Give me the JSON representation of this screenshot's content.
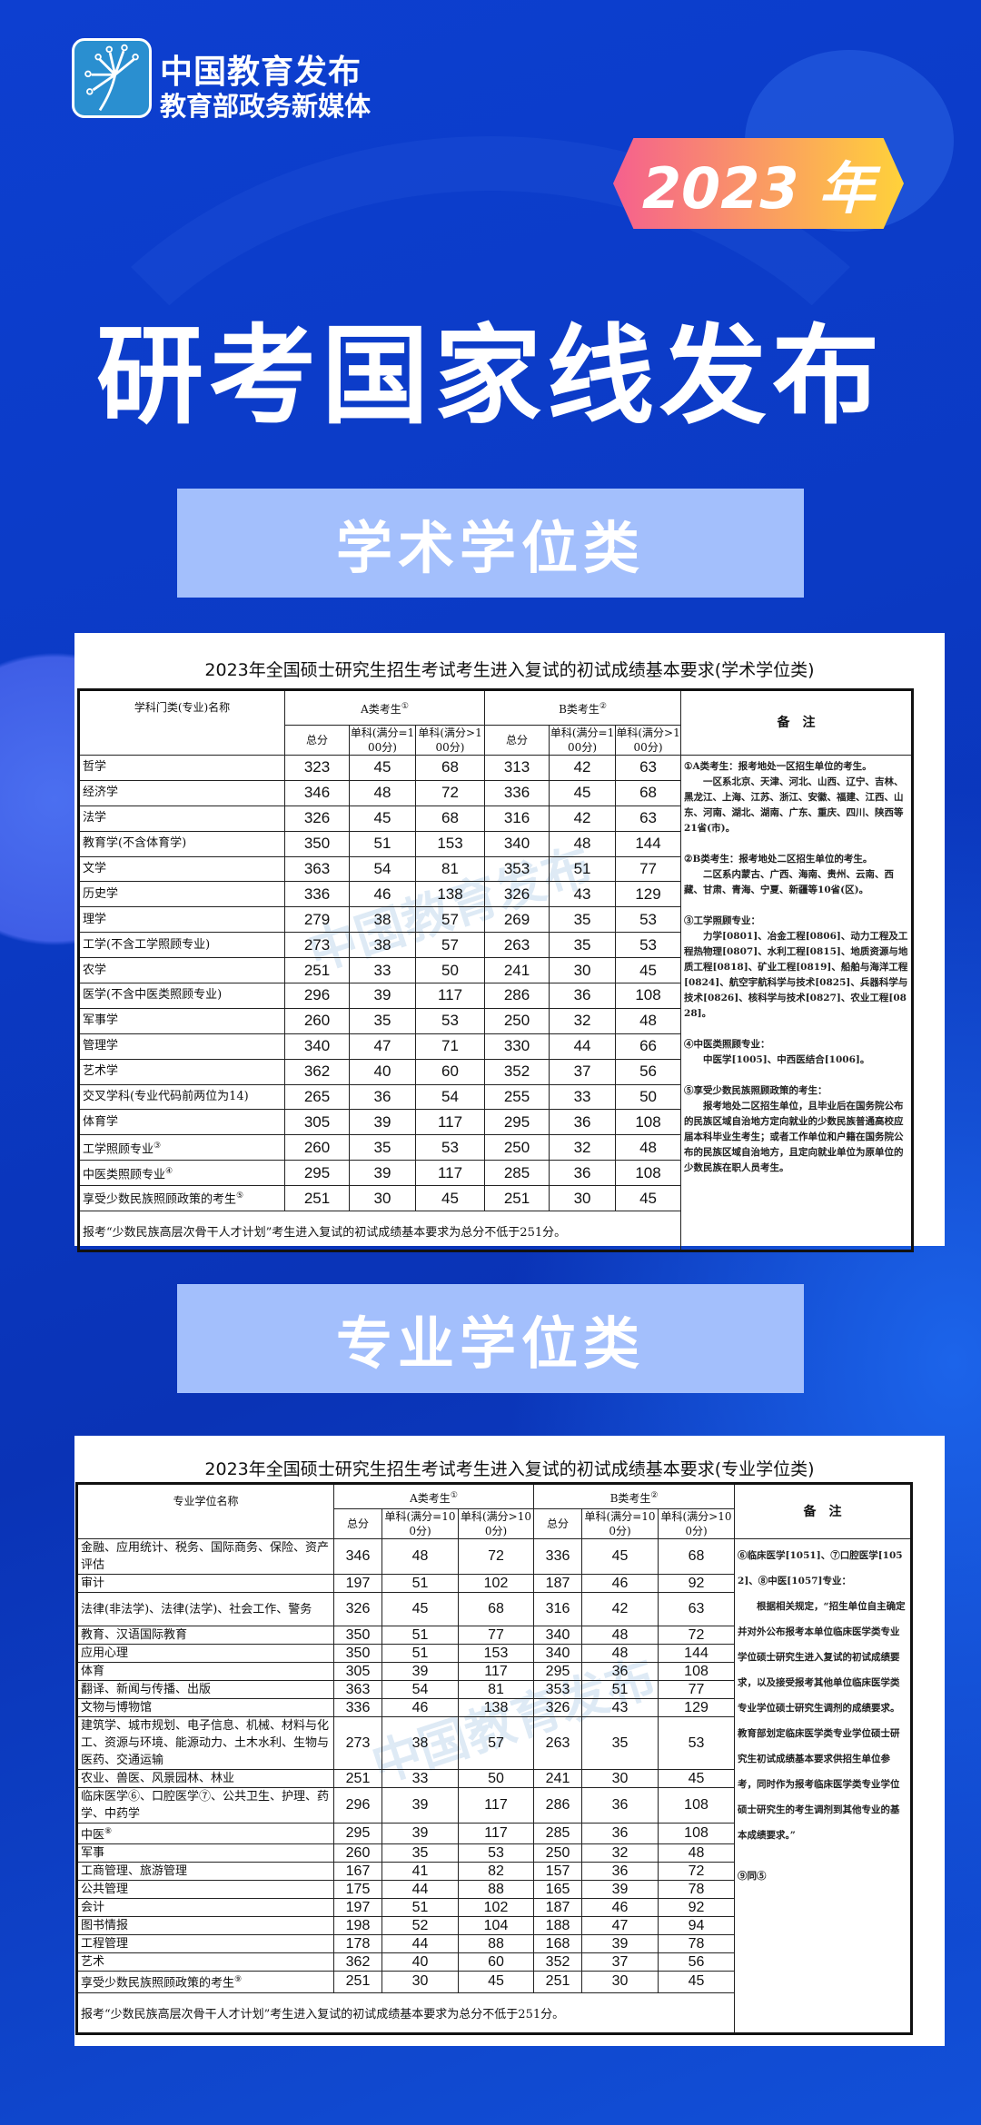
{
  "brand": {
    "name": "中国教育发布",
    "subtitle": "教育部政务新媒体",
    "icon": "dandelion-logo-icon"
  },
  "badge": "2023 年",
  "title": "研考国家线发布",
  "colors": {
    "background": "#0b3ac4",
    "banner": "#a3bffc",
    "badge_start": "#f5608e",
    "badge_end": "#ffd23a"
  },
  "academic": {
    "banner": "学术学位类",
    "table_title": "2023年全国硕士研究生招生考试考生进入复试的初试成绩基本要求(学术学位类)",
    "headers": {
      "name": "学科门类(专业)名称",
      "a_group": "A类考生",
      "a_sup": "①",
      "b_group": "B类考生",
      "b_sup": "②",
      "total": "总分",
      "single100": "单科(满分=100分)",
      "single_gt100": "单科(满分>100分)",
      "notes": "备　注"
    },
    "rows": [
      {
        "name": "哲学",
        "sup": "",
        "v": [
          "323",
          "45",
          "68",
          "313",
          "42",
          "63"
        ]
      },
      {
        "name": "经济学",
        "sup": "",
        "v": [
          "346",
          "48",
          "72",
          "336",
          "45",
          "68"
        ]
      },
      {
        "name": "法学",
        "sup": "",
        "v": [
          "326",
          "45",
          "68",
          "316",
          "42",
          "63"
        ]
      },
      {
        "name": "教育学(不含体育学)",
        "sup": "",
        "v": [
          "350",
          "51",
          "153",
          "340",
          "48",
          "144"
        ]
      },
      {
        "name": "文学",
        "sup": "",
        "v": [
          "363",
          "54",
          "81",
          "353",
          "51",
          "77"
        ]
      },
      {
        "name": "历史学",
        "sup": "",
        "v": [
          "336",
          "46",
          "138",
          "326",
          "43",
          "129"
        ]
      },
      {
        "name": "理学",
        "sup": "",
        "v": [
          "279",
          "38",
          "57",
          "269",
          "35",
          "53"
        ]
      },
      {
        "name": "工学(不含工学照顾专业)",
        "sup": "",
        "v": [
          "273",
          "38",
          "57",
          "263",
          "35",
          "53"
        ]
      },
      {
        "name": "农学",
        "sup": "",
        "v": [
          "251",
          "33",
          "50",
          "241",
          "30",
          "45"
        ]
      },
      {
        "name": "医学(不含中医类照顾专业)",
        "sup": "",
        "v": [
          "296",
          "39",
          "117",
          "286",
          "36",
          "108"
        ]
      },
      {
        "name": "军事学",
        "sup": "",
        "v": [
          "260",
          "35",
          "53",
          "250",
          "32",
          "48"
        ]
      },
      {
        "name": "管理学",
        "sup": "",
        "v": [
          "340",
          "47",
          "71",
          "330",
          "44",
          "66"
        ]
      },
      {
        "name": "艺术学",
        "sup": "",
        "v": [
          "362",
          "40",
          "60",
          "352",
          "37",
          "56"
        ]
      },
      {
        "name": "交叉学科(专业代码前两位为14)",
        "sup": "",
        "v": [
          "265",
          "36",
          "54",
          "255",
          "33",
          "50"
        ]
      },
      {
        "name": "体育学",
        "sup": "",
        "v": [
          "305",
          "39",
          "117",
          "295",
          "36",
          "108"
        ]
      },
      {
        "name": "工学照顾专业",
        "sup": "③",
        "v": [
          "260",
          "35",
          "53",
          "250",
          "32",
          "48"
        ]
      },
      {
        "name": "中医类照顾专业",
        "sup": "④",
        "v": [
          "295",
          "39",
          "117",
          "285",
          "36",
          "108"
        ]
      },
      {
        "name": "享受少数民族照顾政策的考生",
        "sup": "⑤",
        "v": [
          "251",
          "30",
          "45",
          "251",
          "30",
          "45"
        ]
      }
    ],
    "footnote": "报考“少数民族高层次骨干人才计划”考生进入复试的初试成绩基本要求为总分不低于251分。",
    "notes": [
      "①A类考生：报考地处一区招生单位的考生。\n　　一区系北京、天津、河北、山西、辽宁、吉林、黑龙江、上海、江苏、浙江、安徽、福建、江西、山东、河南、湖北、湖南、广东、重庆、四川、陕西等21省(市)。",
      "②B类考生：报考地处二区招生单位的考生。\n　　二区系内蒙古、广西、海南、贵州、云南、西藏、甘肃、青海、宁夏、新疆等10省(区)。",
      "③工学照顾专业：\n　　力学[0801]、冶金工程[0806]、动力工程及工程热物理[0807]、水利工程[0815]、地质资源与地质工程[0818]、矿业工程[0819]、船舶与海洋工程[0824]、航空宇航科学与技术[0825]、兵器科学与技术[0826]、核科学与技术[0827]、农业工程[0828]。",
      "④中医类照顾专业：\n　　中医学[1005]、中西医结合[1006]。",
      "⑤享受少数民族照顾政策的考生：\n　　报考地处二区招生单位，且毕业后在国务院公布的民族区域自治地方定向就业的少数民族普通高校应届本科毕业生考生；或者工作单位和户籍在国务院公布的民族区域自治地方，且定向就业单位为原单位的少数民族在职人员考生。"
    ]
  },
  "professional": {
    "banner": "专业学位类",
    "table_title": "2023年全国硕士研究生招生考试考生进入复试的初试成绩基本要求(专业学位类)",
    "headers": {
      "name": "专业学位名称",
      "a_group": "A类考生",
      "a_sup": "①",
      "b_group": "B类考生",
      "b_sup": "②",
      "total": "总分",
      "single100": "单科(满分=100分)",
      "single_gt100": "单科(满分>100分)",
      "notes": "备　注"
    },
    "rows": [
      {
        "name": "金融、应用统计、税务、国际商务、保险、资产评估",
        "sup": "",
        "v": [
          "346",
          "48",
          "72",
          "336",
          "45",
          "68"
        ]
      },
      {
        "name": "审计",
        "sup": "",
        "v": [
          "197",
          "51",
          "102",
          "187",
          "46",
          "92"
        ]
      },
      {
        "name": "法律(非法学)、法律(法学)、社会工作、警务",
        "sup": "",
        "v": [
          "326",
          "45",
          "68",
          "316",
          "42",
          "63"
        ]
      },
      {
        "name": "教育、汉语国际教育",
        "sup": "",
        "v": [
          "350",
          "51",
          "77",
          "340",
          "48",
          "72"
        ]
      },
      {
        "name": "应用心理",
        "sup": "",
        "v": [
          "350",
          "51",
          "153",
          "340",
          "48",
          "144"
        ]
      },
      {
        "name": "体育",
        "sup": "",
        "v": [
          "305",
          "39",
          "117",
          "295",
          "36",
          "108"
        ]
      },
      {
        "name": "翻译、新闻与传播、出版",
        "sup": "",
        "v": [
          "363",
          "54",
          "81",
          "353",
          "51",
          "77"
        ]
      },
      {
        "name": "文物与博物馆",
        "sup": "",
        "v": [
          "336",
          "46",
          "138",
          "326",
          "43",
          "129"
        ]
      },
      {
        "name": "建筑学、城市规划、电子信息、机械、材料与化工、资源与环境、能源动力、土木水利、生物与医药、交通运输",
        "sup": "",
        "v": [
          "273",
          "38",
          "57",
          "263",
          "35",
          "53"
        ]
      },
      {
        "name": "农业、兽医、风景园林、林业",
        "sup": "",
        "v": [
          "251",
          "33",
          "50",
          "241",
          "30",
          "45"
        ]
      },
      {
        "name": "临床医学⑥、口腔医学⑦、公共卫生、护理、药学、中药学",
        "sup": "",
        "v": [
          "296",
          "39",
          "117",
          "286",
          "36",
          "108"
        ]
      },
      {
        "name": "中医",
        "sup": "⑧",
        "v": [
          "295",
          "39",
          "117",
          "285",
          "36",
          "108"
        ]
      },
      {
        "name": "军事",
        "sup": "",
        "v": [
          "260",
          "35",
          "53",
          "250",
          "32",
          "48"
        ]
      },
      {
        "name": "工商管理、旅游管理",
        "sup": "",
        "v": [
          "167",
          "41",
          "82",
          "157",
          "36",
          "72"
        ]
      },
      {
        "name": "公共管理",
        "sup": "",
        "v": [
          "175",
          "44",
          "88",
          "165",
          "39",
          "78"
        ]
      },
      {
        "name": "会计",
        "sup": "",
        "v": [
          "197",
          "51",
          "102",
          "187",
          "46",
          "92"
        ]
      },
      {
        "name": "图书情报",
        "sup": "",
        "v": [
          "198",
          "52",
          "104",
          "188",
          "47",
          "94"
        ]
      },
      {
        "name": "工程管理",
        "sup": "",
        "v": [
          "178",
          "44",
          "88",
          "168",
          "39",
          "78"
        ]
      },
      {
        "name": "艺术",
        "sup": "",
        "v": [
          "362",
          "40",
          "60",
          "352",
          "37",
          "56"
        ]
      },
      {
        "name": "享受少数民族照顾政策的考生",
        "sup": "⑨",
        "v": [
          "251",
          "30",
          "45",
          "251",
          "30",
          "45"
        ]
      }
    ],
    "footnote": "报考“少数民族高层次骨干人才计划”考生进入复试的初试成绩基本要求为总分不低于251分。",
    "notes": [
      "⑥临床医学[1051]、⑦口腔医学[1052]、⑧中医[1057]专业：\n　　根据相关规定，“招生单位自主确定并对外公布报考本单位临床医学类专业学位硕士研究生进入复试的初试成绩要求，以及接受报考其他单位临床医学类专业学位硕士研究生调剂的成绩要求。教育部划定临床医学类专业学位硕士研究生初试成绩基本要求供招生单位参考，同时作为报考临床医学类专业学位硕士研究生的考生调剂到其他专业的基本成绩要求。”",
      "⑨同⑤"
    ]
  }
}
